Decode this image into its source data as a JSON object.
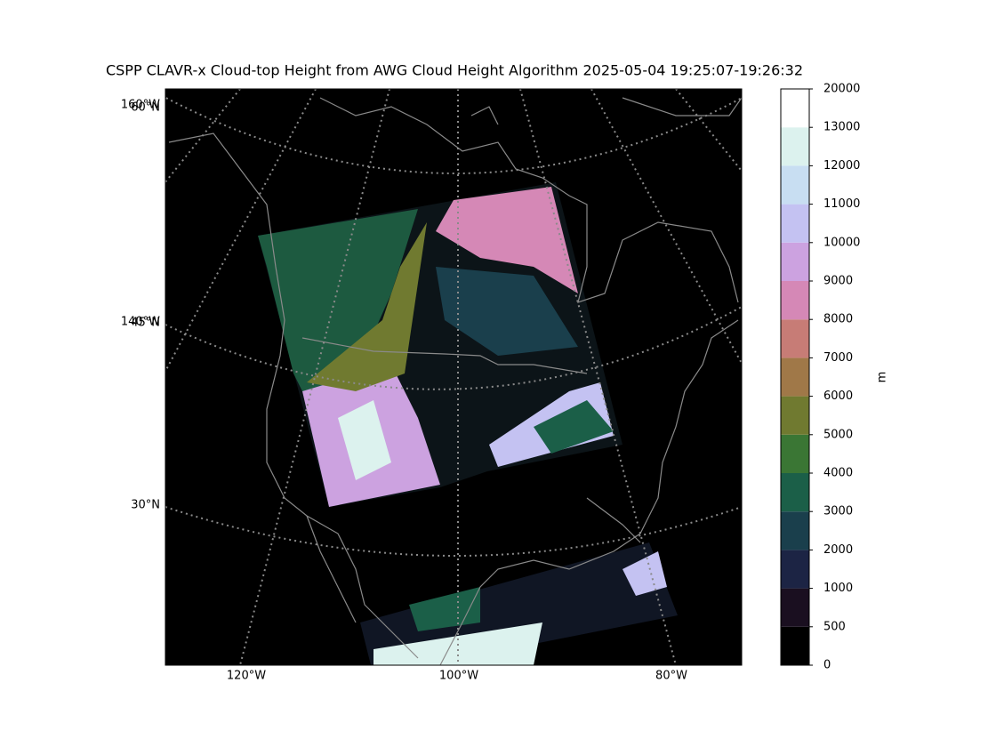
{
  "title": "CSPP CLAVR-x Cloud-top Height from AWG Cloud Height Algorithm 2025-05-04 19:25:07-19:26:32",
  "map": {
    "left_labels": [
      "160°W",
      "60°N",
      "140°W",
      "45°N",
      "30°N"
    ],
    "bottom_labels": [
      "120°W",
      "100°W",
      "80°W"
    ]
  },
  "colorbar": {
    "label": "m",
    "bounds": [
      0,
      500,
      1000,
      2000,
      3000,
      4000,
      5000,
      6000,
      7000,
      8000,
      9000,
      10000,
      11000,
      12000,
      13000,
      20000
    ],
    "colors": [
      "#000000",
      "#1a0f20",
      "#1c2444",
      "#1a3f4c",
      "#1b5f48",
      "#3a7634",
      "#707a30",
      "#a07848",
      "#c77c76",
      "#d588b6",
      "#cca2e0",
      "#c4c2f2",
      "#c8def2",
      "#dcf2ee",
      "#ffffff"
    ]
  }
}
